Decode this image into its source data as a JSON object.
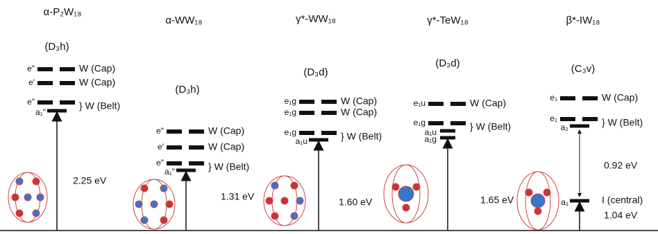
{
  "panels": [
    {
      "title": "α-P₂W₁₈",
      "symmetry": "(D₃h)",
      "gap": "2.25 eV",
      "levels": [
        {
          "label": "e\"",
          "text": "W (Cap)"
        },
        {
          "label": "e'",
          "text": "W (Cap)"
        },
        {
          "label": "e\"",
          "text": "} W (Belt)"
        },
        {
          "label": "a₁\""
        }
      ]
    },
    {
      "title": "α-WW₁₈",
      "symmetry": "(D₃h)",
      "gap": "1.31 eV",
      "levels": [
        {
          "label": "e\"",
          "text": "W (Cap)"
        },
        {
          "label": "e'",
          "text": "W (Cap)"
        },
        {
          "label": "e\"",
          "text": "} W (Belt)"
        },
        {
          "label": "a₁\""
        }
      ]
    },
    {
      "title": "γ*-WW₁₈",
      "symmetry": "(D₃d)",
      "gap": "1.60 eV",
      "levels": [
        {
          "label": "e₁g",
          "text": "W (Cap)"
        },
        {
          "label": "e₁g",
          "text": "W (Cap)"
        },
        {
          "label": "e₁g",
          "text": "} W (Belt)"
        },
        {
          "label": "a₁u"
        }
      ]
    },
    {
      "title": "γ*-TeW₁₈",
      "symmetry": "(D₃d)",
      "gap": "1.65 eV",
      "levels": [
        {
          "label": "e₁u",
          "text": "W (Cap)"
        },
        {
          "label": "e₁g",
          "text": "} W (Belt)"
        },
        {
          "label": "a₁u"
        },
        {
          "label": "a₁g"
        }
      ]
    },
    {
      "title": "β*-IW₁₈",
      "symmetry": "(C₃v)",
      "gap": "1.04 eV",
      "inner_gap": "0.92 eV",
      "levels": [
        {
          "label": "e₁",
          "text": "W (Cap)"
        },
        {
          "label": "e₁",
          "text": "} W (Belt)"
        },
        {
          "label": "a₂"
        },
        {
          "label": "a₁",
          "text": "I (central)"
        }
      ]
    }
  ]
}
